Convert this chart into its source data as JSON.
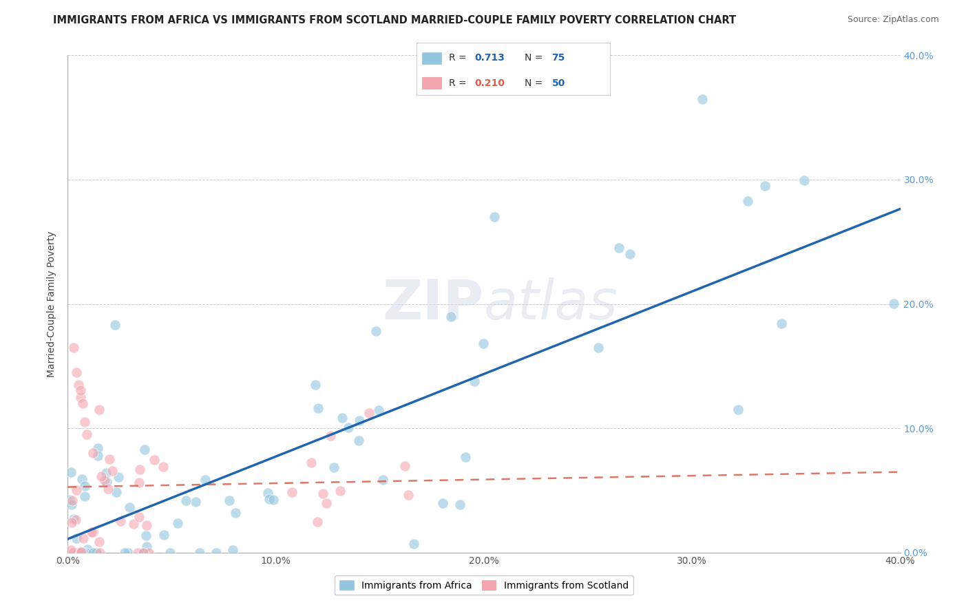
{
  "title": "IMMIGRANTS FROM AFRICA VS IMMIGRANTS FROM SCOTLAND MARRIED-COUPLE FAMILY POVERTY CORRELATION CHART",
  "source": "Source: ZipAtlas.com",
  "ylabel": "Married-Couple Family Poverty",
  "series1_label": "Immigrants from Africa",
  "series2_label": "Immigrants from Scotland",
  "R1": 0.713,
  "N1": 75,
  "R2": 0.21,
  "N2": 50,
  "color1": "#92c5de",
  "color2": "#f4a5b0",
  "line1_color": "#2166ac",
  "line2_color": "#d6604d",
  "watermark_zip": "ZIP",
  "watermark_atlas": "atlas",
  "background_color": "#ffffff",
  "title_fontsize": 10.5,
  "source_fontsize": 9,
  "xlim": [
    0.0,
    0.4
  ],
  "ylim": [
    0.0,
    0.4
  ],
  "tick_vals": [
    0.0,
    0.1,
    0.2,
    0.3,
    0.4
  ],
  "tick_labels": [
    "0.0%",
    "10.0%",
    "20.0%",
    "30.0%",
    "40.0%"
  ],
  "legend_R1_color": "#2166ac",
  "legend_R2_color": "#d6604d",
  "legend_N_color": "#2166ac"
}
